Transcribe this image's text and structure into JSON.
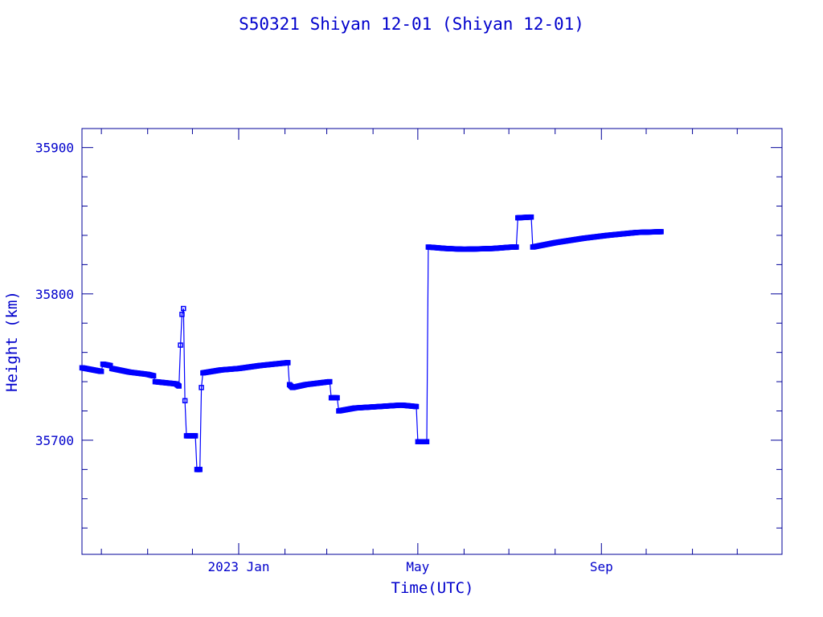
{
  "chart_data": {
    "type": "line",
    "title": "S50321 Shiyan 12-01  (Shiyan 12-01)",
    "xlabel": "Time(UTC)",
    "ylabel": "Height (km)",
    "x_ticks": [
      {
        "label": "2023 Jan",
        "date": "2023-01-01"
      },
      {
        "label": "May",
        "date": "2023-05-01"
      },
      {
        "label": "Sep",
        "date": "2023-09-01"
      }
    ],
    "xlim": [
      "2022-09-18",
      "2023-12-31"
    ],
    "y_ticks": [
      35700,
      35800,
      35900
    ],
    "ylim": [
      35622,
      35913
    ],
    "grid": false,
    "colors": {
      "axis": "#000099",
      "text": "#0000cc",
      "series": "#0000ff"
    },
    "series": [
      {
        "points": [
          [
            "2022-09-18",
            35749.5
          ],
          [
            "2022-10-01",
            35747
          ],
          [
            "2022-10-02",
            35752
          ],
          [
            "2022-10-07",
            35751
          ],
          [
            "2022-10-08",
            35749
          ],
          [
            "2022-10-20",
            35746.5
          ],
          [
            "2022-11-01",
            35745
          ],
          [
            "2022-11-05",
            35744
          ],
          [
            "2022-11-06",
            35740
          ],
          [
            "2022-11-20",
            35738.5
          ],
          [
            "2022-11-22",
            35737
          ],
          [
            "2022-11-23",
            35765
          ],
          [
            "2022-11-24",
            35786
          ],
          [
            "2022-11-25",
            35790
          ],
          [
            "2022-11-26",
            35727
          ],
          [
            "2022-11-27",
            35703
          ],
          [
            "2022-12-03",
            35703
          ],
          [
            "2022-12-04",
            35680
          ],
          [
            "2022-12-06",
            35680
          ],
          [
            "2022-12-07",
            35736
          ],
          [
            "2022-12-08",
            35746
          ],
          [
            "2022-12-20",
            35748
          ],
          [
            "2023-01-01",
            35749
          ],
          [
            "2023-01-15",
            35751
          ],
          [
            "2023-02-03",
            35753
          ],
          [
            "2023-02-04",
            35738
          ],
          [
            "2023-02-06",
            35736
          ],
          [
            "2023-02-15",
            35738
          ],
          [
            "2023-03-03",
            35740
          ],
          [
            "2023-03-04",
            35729
          ],
          [
            "2023-03-08",
            35729
          ],
          [
            "2023-03-09",
            35720
          ],
          [
            "2023-03-20",
            35722
          ],
          [
            "2023-04-05",
            35723
          ],
          [
            "2023-04-20",
            35724
          ],
          [
            "2023-04-30",
            35723
          ],
          [
            "2023-05-01",
            35699
          ],
          [
            "2023-05-07",
            35699
          ],
          [
            "2023-05-08",
            35832
          ],
          [
            "2023-05-20",
            35831
          ],
          [
            "2023-06-01",
            35830.5
          ],
          [
            "2023-06-20",
            35831
          ],
          [
            "2023-07-03",
            35832
          ],
          [
            "2023-07-06",
            35832
          ],
          [
            "2023-07-07",
            35852
          ],
          [
            "2023-07-16",
            35852.5
          ],
          [
            "2023-07-17",
            35832
          ],
          [
            "2023-08-01",
            35835
          ],
          [
            "2023-08-20",
            35838
          ],
          [
            "2023-09-05",
            35840
          ],
          [
            "2023-09-25",
            35842
          ],
          [
            "2023-10-11",
            35842.5
          ]
        ]
      }
    ]
  }
}
